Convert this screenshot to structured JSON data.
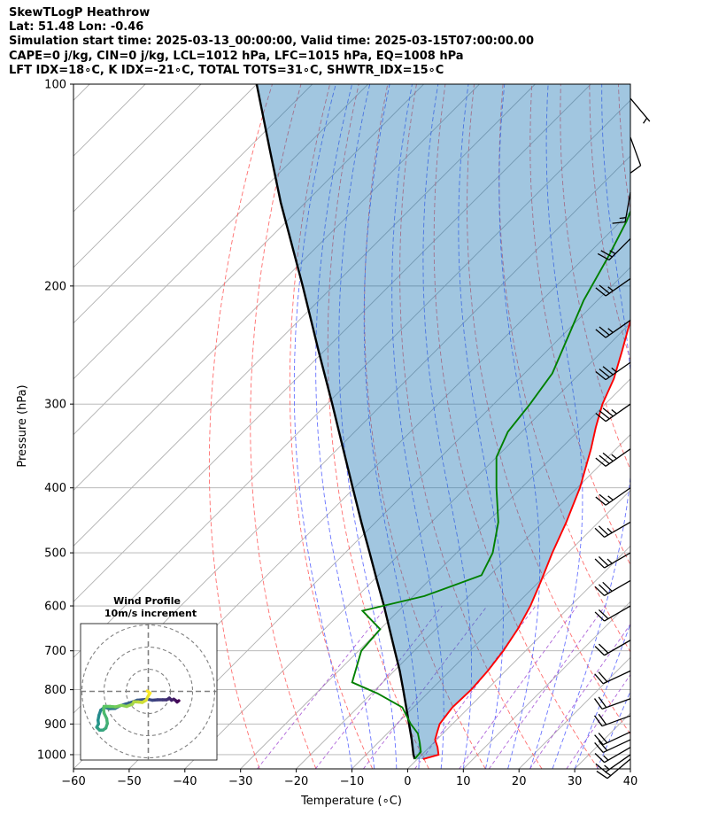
{
  "header": {
    "line1": "SkewTLogP Heathrow",
    "line2": "Lat: 51.48   Lon: -0.46",
    "line3": "Simulation start time: 2025-03-13_00:00:00, Valid time: 2025-03-15T07:00:00.00",
    "line4": "CAPE=0 j/kg, CIN=0 j/kg, LCL=1012 hPa, LFC=1015 hPa, EQ=1008 hPa",
    "line5": "LFT IDX=18∘C, K IDX=-21∘C, TOTAL TOTS=31∘C, SHWTR_IDX=15∘C"
  },
  "chart_data": [
    {
      "type": "line",
      "subtype": "skew-t log-p diagram",
      "xlabel": "Temperature (∘C)",
      "ylabel": "Pressure (hPa)",
      "xlim": [
        -60,
        40
      ],
      "ylim_hpa": [
        1050,
        100
      ],
      "y_scale": "log",
      "grid": true,
      "x_ticks": [
        -60,
        -50,
        -40,
        -30,
        -20,
        -10,
        0,
        10,
        20,
        30,
        40
      ],
      "y_ticks": [
        1000,
        900,
        800,
        700,
        600,
        500,
        400,
        300,
        200,
        100
      ],
      "series": [
        {
          "color": "#ff0000",
          "points": [
            [
              1015,
              1.0
            ],
            [
              1000,
              3.0
            ],
            [
              975,
              1.5
            ],
            [
              950,
              -0.3
            ],
            [
              925,
              -1.3
            ],
            [
              900,
              -2.3
            ],
            [
              850,
              -3.0
            ],
            [
              800,
              -2.8
            ],
            [
              750,
              -3.2
            ],
            [
              700,
              -4.0
            ],
            [
              650,
              -5.3
            ],
            [
              600,
              -7.2
            ],
            [
              550,
              -9.8
            ],
            [
              500,
              -12.8
            ],
            [
              450,
              -15.8
            ],
            [
              400,
              -19.5
            ],
            [
              350,
              -24.5
            ],
            [
              325,
              -27.5
            ],
            [
              300,
              -30.5
            ],
            [
              275,
              -33.0
            ],
            [
              250,
              -36.5
            ],
            [
              225,
              -40.5
            ],
            [
              200,
              -44.5
            ],
            [
              175,
              -49.0
            ],
            [
              160,
              -52.5
            ],
            [
              145,
              -56.5
            ],
            [
              130,
              -61.0
            ],
            [
              115,
              -65.0
            ],
            [
              100,
              -69.0
            ]
          ]
        },
        {
          "color": "#008000",
          "points": [
            [
              1015,
              -0.5
            ],
            [
              990,
              -0.7
            ],
            [
              960,
              -2.5
            ],
            [
              930,
              -4.5
            ],
            [
              900,
              -7.5
            ],
            [
              850,
              -12.0
            ],
            [
              810,
              -19.0
            ],
            [
              780,
              -25.5
            ],
            [
              700,
              -29.5
            ],
            [
              650,
              -30.0
            ],
            [
              610,
              -36.5
            ],
            [
              580,
              -28.0
            ],
            [
              540,
              -21.5
            ],
            [
              500,
              -23.5
            ],
            [
              450,
              -28.0
            ],
            [
              400,
              -34.5
            ],
            [
              360,
              -40.0
            ],
            [
              330,
              -42.5
            ],
            [
              300,
              -43.5
            ],
            [
              270,
              -45.0
            ],
            [
              240,
              -48.5
            ],
            [
              210,
              -52.5
            ],
            [
              180,
              -56.0
            ],
            [
              160,
              -59.0
            ],
            [
              130,
              -65.5
            ],
            [
              100,
              -75.0
            ]
          ]
        },
        {
          "color": "#000000",
          "points": [
            [
              1015,
              -0.5
            ],
            [
              1000,
              -1.5
            ],
            [
              950,
              -4.5
            ],
            [
              900,
              -7.8
            ],
            [
              850,
              -11.3
            ],
            [
              800,
              -15.0
            ],
            [
              750,
              -19.0
            ],
            [
              700,
              -23.5
            ],
            [
              650,
              -28.3
            ],
            [
              600,
              -33.5
            ],
            [
              550,
              -39.3
            ],
            [
              500,
              -45.6
            ],
            [
              450,
              -52.6
            ],
            [
              400,
              -60.3
            ],
            [
              350,
              -69.0
            ],
            [
              300,
              -79.0
            ],
            [
              250,
              -91.0
            ],
            [
              200,
              -105.5
            ],
            [
              150,
              -124.5
            ],
            [
              125,
              -136.0
            ],
            [
              100,
              -150.0
            ]
          ]
        }
      ],
      "wind_barbs": [
        {
          "p": 1015,
          "speed_kt": 15,
          "dir_deg": 230
        },
        {
          "p": 1000,
          "speed_kt": 15,
          "dir_deg": 235
        },
        {
          "p": 975,
          "speed_kt": 15,
          "dir_deg": 240
        },
        {
          "p": 950,
          "speed_kt": 20,
          "dir_deg": 245
        },
        {
          "p": 925,
          "speed_kt": 20,
          "dir_deg": 245
        },
        {
          "p": 875,
          "speed_kt": 20,
          "dir_deg": 250
        },
        {
          "p": 825,
          "speed_kt": 20,
          "dir_deg": 250
        },
        {
          "p": 750,
          "speed_kt": 20,
          "dir_deg": 245
        },
        {
          "p": 675,
          "speed_kt": 20,
          "dir_deg": 240
        },
        {
          "p": 600,
          "speed_kt": 20,
          "dir_deg": 240
        },
        {
          "p": 550,
          "speed_kt": 30,
          "dir_deg": 240
        },
        {
          "p": 500,
          "speed_kt": 25,
          "dir_deg": 240
        },
        {
          "p": 450,
          "speed_kt": 25,
          "dir_deg": 240
        },
        {
          "p": 400,
          "speed_kt": 25,
          "dir_deg": 235
        },
        {
          "p": 350,
          "speed_kt": 35,
          "dir_deg": 235
        },
        {
          "p": 300,
          "speed_kt": 35,
          "dir_deg": 235
        },
        {
          "p": 260,
          "speed_kt": 35,
          "dir_deg": 235
        },
        {
          "p": 225,
          "speed_kt": 25,
          "dir_deg": 235
        },
        {
          "p": 195,
          "speed_kt": 25,
          "dir_deg": 235
        },
        {
          "p": 170,
          "speed_kt": 25,
          "dir_deg": 225
        },
        {
          "p": 145,
          "speed_kt": 15,
          "dir_deg": 190
        },
        {
          "p": 120,
          "speed_kt": 10,
          "dir_deg": 160
        },
        {
          "p": 105,
          "speed_kt": 5,
          "dir_deg": 140
        }
      ]
    },
    {
      "type": "scatter",
      "subtype": "hodograph",
      "title_lines": [
        "Wind Profile",
        "10m/s increment"
      ],
      "ring_increment_ms": 10,
      "colormap": "viridis",
      "points": [
        [
          13.8,
          -4.2
        ],
        [
          13.0,
          -4.8
        ],
        [
          12.2,
          -4.0
        ],
        [
          11.5,
          -3.5
        ],
        [
          10.5,
          -4.0
        ],
        [
          9.5,
          -3.0
        ],
        [
          8.3,
          -3.8
        ],
        [
          6.5,
          -3.8
        ],
        [
          4.2,
          -3.8
        ],
        [
          1.8,
          -4.0
        ],
        [
          -0.5,
          -3.5
        ],
        [
          -2.7,
          -3.8
        ],
        [
          -5.0,
          -4.0
        ],
        [
          -7.8,
          -5.0
        ],
        [
          -10.5,
          -5.8
        ],
        [
          -12.8,
          -6.5
        ],
        [
          -15.0,
          -7.7
        ],
        [
          -17.5,
          -7.8
        ],
        [
          -19.8,
          -7.2
        ],
        [
          -21.5,
          -8.5
        ],
        [
          -22.3,
          -10.8
        ],
        [
          -22.7,
          -13.0
        ],
        [
          -22.5,
          -14.7
        ],
        [
          -23.3,
          -16.2
        ],
        [
          -22.0,
          -17.5
        ],
        [
          -20.5,
          -17.5
        ],
        [
          -19.2,
          -16.6
        ],
        [
          -18.5,
          -14.5
        ],
        [
          -18.8,
          -12.3
        ],
        [
          -20.0,
          -9.8
        ],
        [
          -20.2,
          -8.0
        ],
        [
          -20.0,
          -6.8
        ],
        [
          -17.3,
          -6.8
        ],
        [
          -14.8,
          -7.0
        ],
        [
          -12.2,
          -6.3
        ],
        [
          -9.8,
          -6.8
        ],
        [
          -7.2,
          -5.8
        ],
        [
          -6.5,
          -4.7
        ],
        [
          -4.5,
          -4.8
        ],
        [
          -2.7,
          -5.0
        ],
        [
          -1.0,
          -4.0
        ],
        [
          0.0,
          -2.0
        ],
        [
          0.8,
          -0.8
        ],
        [
          -0.5,
          0.2
        ]
      ]
    }
  ]
}
